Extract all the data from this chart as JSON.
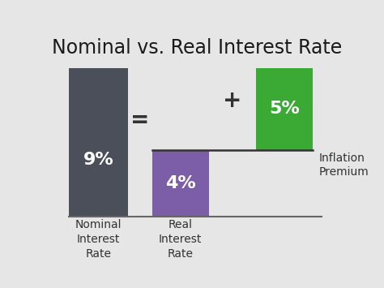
{
  "title": "Nominal vs. Real Interest Rate",
  "background_color": "#e6e6e6",
  "bar1_color": "#4a4f5a",
  "bar2_color": "#7b5ea7",
  "bar3_color": "#3aaa35",
  "bar1_label": "9%",
  "bar2_label": "4%",
  "bar3_label": "5%",
  "xlabel1": "Nominal\nInterest\nRate",
  "xlabel2": "Real\nInterest\nRate",
  "xlabel3": "Inflation\nPremium",
  "equal_sign": "=",
  "plus_sign": "+",
  "title_fontsize": 17,
  "bar_label_fontsize": 16,
  "sign_fontsize": 20,
  "xlabel_fontsize": 10
}
